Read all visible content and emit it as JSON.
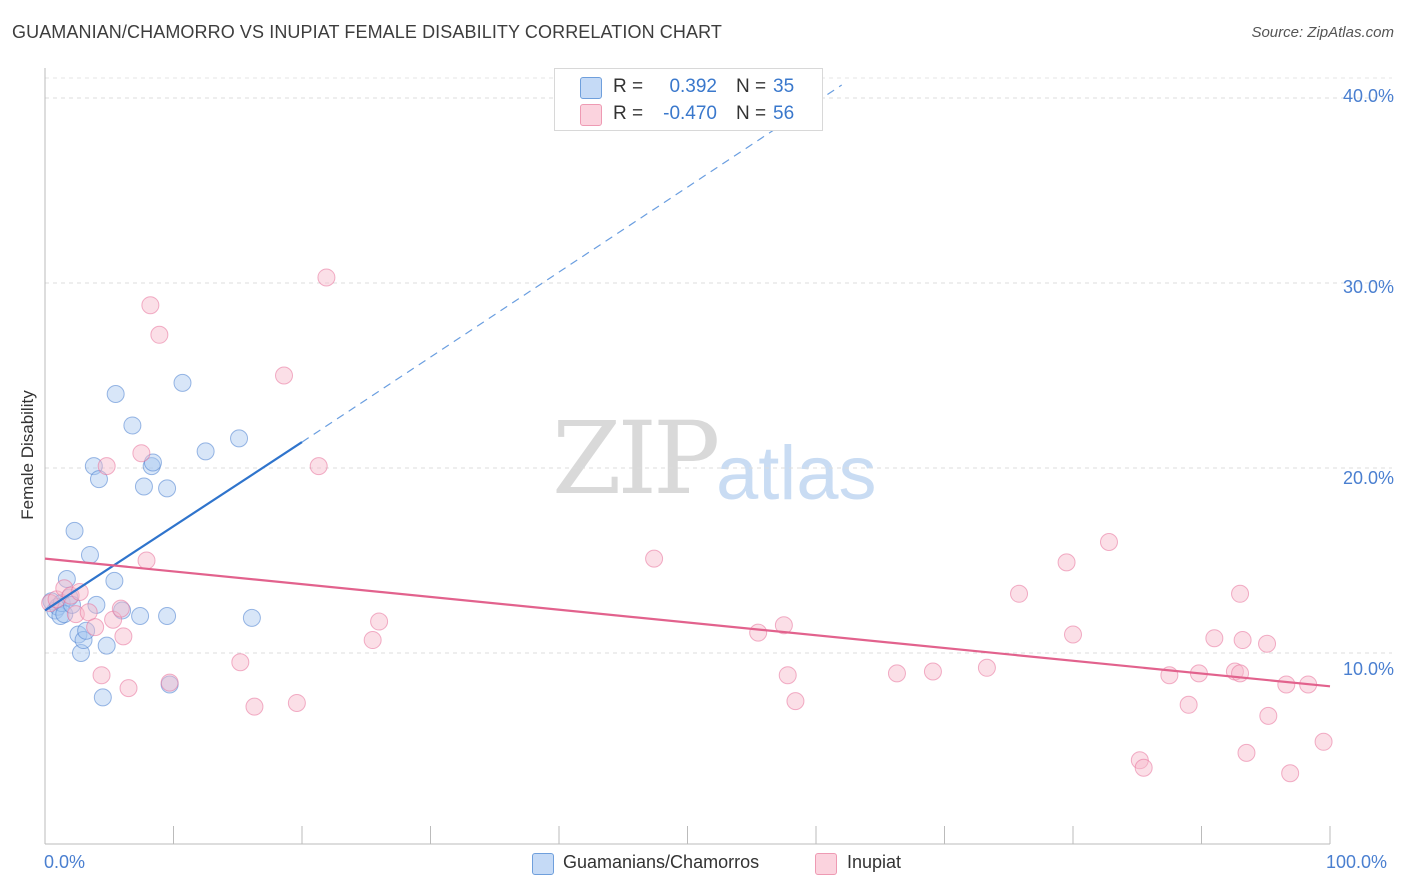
{
  "header": {
    "title": "GUAMANIAN/CHAMORRO VS INUPIAT FEMALE DISABILITY CORRELATION CHART",
    "source": "Source: ZipAtlas.com"
  },
  "watermark": {
    "zip": "ZIP",
    "atlas": "atlas"
  },
  "legend": {
    "rows": [
      {
        "r_label": "R =",
        "r_value": "0.392",
        "n_label": "N =",
        "n_value": "35",
        "color": "#a9c8f0"
      },
      {
        "r_label": "R =",
        "r_value": "-0.470",
        "n_label": "N =",
        "n_value": "56",
        "color": "#f6b8c9"
      }
    ],
    "bottom": [
      {
        "label": "Guamanians/Chamorros",
        "color": "#a9c8f0"
      },
      {
        "label": "Inupiat",
        "color": "#f6b8c9"
      }
    ]
  },
  "axes": {
    "ylabel": "Female Disability",
    "y_ticks": [
      "40.0%",
      "30.0%",
      "20.0%",
      "10.0%"
    ],
    "x_ticks": [
      "0.0%",
      "100.0%"
    ]
  },
  "chart_data": {
    "type": "scatter",
    "title": "GUAMANIAN/CHAMORRO VS INUPIAT FEMALE DISABILITY CORRELATION CHART",
    "xlabel": "",
    "ylabel": "Female Disability",
    "xlim": [
      0,
      100
    ],
    "ylim": [
      0,
      40
    ],
    "grid": true,
    "legend_position": "top-center",
    "series": [
      {
        "name": "Guamanians/Chamorros",
        "color": "#4a7fd0",
        "fill": "#a9c8f0",
        "points": [
          [
            0.5,
            12.8
          ],
          [
            0.8,
            12.3
          ],
          [
            1.0,
            12.5
          ],
          [
            1.2,
            12.0
          ],
          [
            1.3,
            12.7
          ],
          [
            1.5,
            12.1
          ],
          [
            1.7,
            14.0
          ],
          [
            1.9,
            13.0
          ],
          [
            2.1,
            12.6
          ],
          [
            2.3,
            16.6
          ],
          [
            2.6,
            11.0
          ],
          [
            2.8,
            10.0
          ],
          [
            3.0,
            10.7
          ],
          [
            3.2,
            11.2
          ],
          [
            3.5,
            15.3
          ],
          [
            3.8,
            20.1
          ],
          [
            4.0,
            12.6
          ],
          [
            4.2,
            19.4
          ],
          [
            4.5,
            7.6
          ],
          [
            4.8,
            10.4
          ],
          [
            5.4,
            13.9
          ],
          [
            5.5,
            24.0
          ],
          [
            6.0,
            12.3
          ],
          [
            6.8,
            22.3
          ],
          [
            7.4,
            12.0
          ],
          [
            7.7,
            19.0
          ],
          [
            8.3,
            20.1
          ],
          [
            8.4,
            20.3
          ],
          [
            9.5,
            12.0
          ],
          [
            9.5,
            18.9
          ],
          [
            9.7,
            8.3
          ],
          [
            10.7,
            24.6
          ],
          [
            12.5,
            20.9
          ],
          [
            15.1,
            21.6
          ],
          [
            16.1,
            11.9
          ]
        ],
        "trend": {
          "x": [
            0,
            20.0
          ],
          "y": [
            12.3,
            21.4
          ],
          "extended_to": [
            62.0,
            40.7
          ]
        }
      },
      {
        "name": "Inupiat",
        "color": "#e8719a",
        "fill": "#f6b8c9",
        "points": [
          [
            0.4,
            12.7
          ],
          [
            0.9,
            12.9
          ],
          [
            1.5,
            13.5
          ],
          [
            2.0,
            13.1
          ],
          [
            2.4,
            12.1
          ],
          [
            2.7,
            13.3
          ],
          [
            3.4,
            12.2
          ],
          [
            3.9,
            11.4
          ],
          [
            4.4,
            8.8
          ],
          [
            4.8,
            20.1
          ],
          [
            5.3,
            11.8
          ],
          [
            5.9,
            12.4
          ],
          [
            6.1,
            10.9
          ],
          [
            6.5,
            8.1
          ],
          [
            7.5,
            20.8
          ],
          [
            7.9,
            15.0
          ],
          [
            8.2,
            28.8
          ],
          [
            8.9,
            27.2
          ],
          [
            9.7,
            8.4
          ],
          [
            15.2,
            9.5
          ],
          [
            16.3,
            7.1
          ],
          [
            18.6,
            25.0
          ],
          [
            19.6,
            7.3
          ],
          [
            21.3,
            20.1
          ],
          [
            21.9,
            30.3
          ],
          [
            25.5,
            10.7
          ],
          [
            26.0,
            11.7
          ],
          [
            47.4,
            15.1
          ],
          [
            55.5,
            11.1
          ],
          [
            57.5,
            11.5
          ],
          [
            57.8,
            8.8
          ],
          [
            58.4,
            7.4
          ],
          [
            66.3,
            8.9
          ],
          [
            69.1,
            9.0
          ],
          [
            73.3,
            9.2
          ],
          [
            75.8,
            13.2
          ],
          [
            79.5,
            14.9
          ],
          [
            80.0,
            11.0
          ],
          [
            82.8,
            16.0
          ],
          [
            85.2,
            4.2
          ],
          [
            85.5,
            3.8
          ],
          [
            87.5,
            8.8
          ],
          [
            89.0,
            7.2
          ],
          [
            89.8,
            8.9
          ],
          [
            91.0,
            10.8
          ],
          [
            92.6,
            9.0
          ],
          [
            93.0,
            8.9
          ],
          [
            93.5,
            4.6
          ],
          [
            93.0,
            13.2
          ],
          [
            93.2,
            10.7
          ],
          [
            95.1,
            10.5
          ],
          [
            95.2,
            6.6
          ],
          [
            96.6,
            8.3
          ],
          [
            96.9,
            3.5
          ],
          [
            98.3,
            8.3
          ],
          [
            99.5,
            5.2
          ]
        ],
        "trend": {
          "x": [
            0,
            100
          ],
          "y": [
            15.1,
            8.2
          ]
        }
      }
    ]
  }
}
